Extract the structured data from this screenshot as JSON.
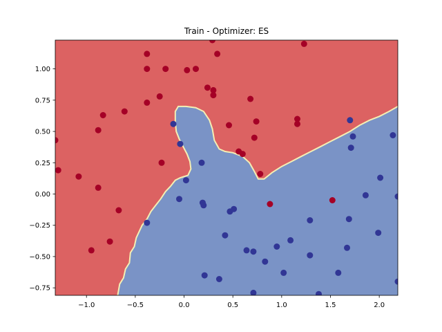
{
  "chart_data": {
    "type": "scatter",
    "title": "Train - Optimizer: ES",
    "xlabel": "",
    "ylabel": "",
    "xlim": [
      -1.32,
      2.19
    ],
    "ylim": [
      -0.81,
      1.23
    ],
    "x_ticks": [
      -1.0,
      -0.5,
      0.0,
      0.5,
      1.0,
      1.5,
      2.0
    ],
    "x_tick_labels": [
      "−1.0",
      "−0.5",
      "0.0",
      "0.5",
      "1.0",
      "1.5",
      "2.0"
    ],
    "y_ticks": [
      -0.75,
      -0.5,
      -0.25,
      0.0,
      0.25,
      0.5,
      0.75,
      1.0
    ],
    "y_tick_labels": [
      "−0.75",
      "−0.50",
      "−0.25",
      "0.00",
      "0.25",
      "0.50",
      "0.75",
      "1.00"
    ],
    "grid": false,
    "background_regions": {
      "class_0_color": "#dc6262",
      "class_1_color": "#7a93c6",
      "boundary_color": "#f4efb4",
      "decision_boundary": [
        [
          -0.68,
          -0.81
        ],
        [
          -0.66,
          -0.72
        ],
        [
          -0.62,
          -0.67
        ],
        [
          -0.6,
          -0.6
        ],
        [
          -0.56,
          -0.55
        ],
        [
          -0.55,
          -0.47
        ],
        [
          -0.51,
          -0.42
        ],
        [
          -0.49,
          -0.35
        ],
        [
          -0.46,
          -0.3
        ],
        [
          -0.43,
          -0.25
        ],
        [
          -0.38,
          -0.2
        ],
        [
          -0.34,
          -0.14
        ],
        [
          -0.29,
          -0.09
        ],
        [
          -0.24,
          -0.04
        ],
        [
          -0.19,
          0.02
        ],
        [
          -0.14,
          0.06
        ],
        [
          -0.09,
          0.11
        ],
        [
          -0.04,
          0.13
        ],
        [
          0.04,
          0.15
        ],
        [
          0.07,
          0.2
        ],
        [
          0.06,
          0.26
        ],
        [
          0.03,
          0.32
        ],
        [
          -0.01,
          0.38
        ],
        [
          -0.05,
          0.44
        ],
        [
          -0.08,
          0.5
        ],
        [
          -0.09,
          0.58
        ],
        [
          -0.09,
          0.66
        ],
        [
          -0.06,
          0.7
        ],
        [
          0.02,
          0.7
        ],
        [
          0.12,
          0.69
        ],
        [
          0.2,
          0.66
        ],
        [
          0.26,
          0.59
        ],
        [
          0.29,
          0.52
        ],
        [
          0.31,
          0.43
        ],
        [
          0.36,
          0.36
        ],
        [
          0.42,
          0.34
        ],
        [
          0.5,
          0.33
        ],
        [
          0.6,
          0.3
        ],
        [
          0.67,
          0.25
        ],
        [
          0.72,
          0.18
        ],
        [
          0.76,
          0.12
        ],
        [
          0.82,
          0.12
        ],
        [
          0.9,
          0.17
        ],
        [
          1.0,
          0.22
        ],
        [
          1.1,
          0.26
        ],
        [
          1.2,
          0.3
        ],
        [
          1.3,
          0.34
        ],
        [
          1.4,
          0.38
        ],
        [
          1.5,
          0.42
        ],
        [
          1.6,
          0.46
        ],
        [
          1.7,
          0.5
        ],
        [
          1.8,
          0.55
        ],
        [
          1.9,
          0.59
        ],
        [
          2.0,
          0.62
        ],
        [
          2.1,
          0.66
        ],
        [
          2.19,
          0.7
        ]
      ]
    },
    "series": [
      {
        "color": "#a50026",
        "points": [
          [
            -1.32,
            0.43
          ],
          [
            -1.29,
            0.19
          ],
          [
            -1.08,
            0.14
          ],
          [
            -0.88,
            0.51
          ],
          [
            -0.88,
            0.05
          ],
          [
            -0.83,
            0.63
          ],
          [
            -0.95,
            -0.45
          ],
          [
            -0.76,
            -0.38
          ],
          [
            -0.67,
            -0.13
          ],
          [
            -0.61,
            0.66
          ],
          [
            -0.38,
            1.12
          ],
          [
            -0.38,
            1.0
          ],
          [
            -0.38,
            0.73
          ],
          [
            -0.25,
            0.78
          ],
          [
            -0.23,
            0.25
          ],
          [
            -0.19,
            1.0
          ],
          [
            0.03,
            0.99
          ],
          [
            0.12,
            1.0
          ],
          [
            0.24,
            0.85
          ],
          [
            0.29,
            1.23
          ],
          [
            0.3,
            0.83
          ],
          [
            0.3,
            0.79
          ],
          [
            0.34,
            1.12
          ],
          [
            0.46,
            0.55
          ],
          [
            0.56,
            0.34
          ],
          [
            0.6,
            0.32
          ],
          [
            0.68,
            0.76
          ],
          [
            0.72,
            0.45
          ],
          [
            0.74,
            0.58
          ],
          [
            0.78,
            0.16
          ],
          [
            0.88,
            -0.08
          ],
          [
            1.16,
            0.6
          ],
          [
            1.16,
            0.56
          ],
          [
            1.23,
            1.2
          ],
          [
            1.52,
            -0.05
          ]
        ]
      },
      {
        "color": "#313695",
        "points": [
          [
            -0.11,
            0.56
          ],
          [
            -0.04,
            0.4
          ],
          [
            -0.38,
            -0.23
          ],
          [
            -0.05,
            -0.04
          ],
          [
            0.02,
            0.11
          ],
          [
            0.18,
            0.25
          ],
          [
            0.19,
            -0.07
          ],
          [
            0.2,
            -0.09
          ],
          [
            0.21,
            -0.65
          ],
          [
            0.36,
            -0.68
          ],
          [
            0.42,
            -0.33
          ],
          [
            0.47,
            -0.14
          ],
          [
            0.51,
            -0.12
          ],
          [
            0.64,
            -0.45
          ],
          [
            0.71,
            -0.46
          ],
          [
            0.71,
            -0.79
          ],
          [
            0.83,
            -0.54
          ],
          [
            0.95,
            -0.42
          ],
          [
            1.02,
            -0.63
          ],
          [
            1.09,
            -0.37
          ],
          [
            1.29,
            -0.21
          ],
          [
            1.29,
            -0.49
          ],
          [
            1.38,
            -0.8
          ],
          [
            1.58,
            -0.63
          ],
          [
            1.67,
            -0.43
          ],
          [
            1.69,
            -0.2
          ],
          [
            1.7,
            0.59
          ],
          [
            1.71,
            0.37
          ],
          [
            1.73,
            0.46
          ],
          [
            1.86,
            -0.01
          ],
          [
            1.99,
            -0.31
          ],
          [
            2.01,
            0.13
          ],
          [
            2.14,
            0.47
          ],
          [
            2.19,
            -0.02
          ],
          [
            2.19,
            -0.7
          ]
        ]
      }
    ]
  }
}
